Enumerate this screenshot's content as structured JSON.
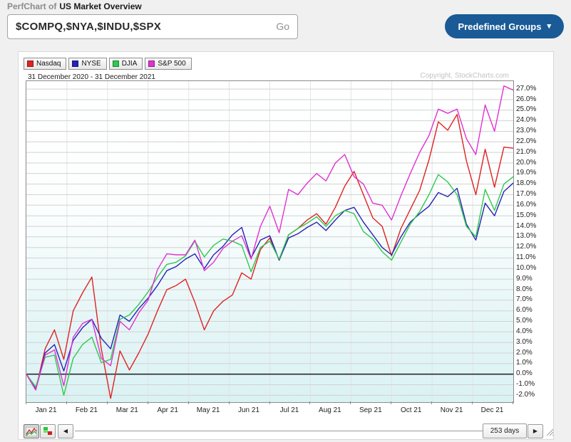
{
  "header": {
    "title_prefix": "PerfChart of",
    "title_main": "US Market Overview"
  },
  "controls": {
    "symbols_input_value": "$COMPQ,$NYA,$INDU,$SPX",
    "go_label": "Go",
    "predefined_groups_label": "Predefined Groups",
    "predefined_groups_color": "#1a5a96"
  },
  "icons": {
    "chevron_down": "▾",
    "scroll_left": "◀",
    "scroll_right": "▶"
  },
  "chart": {
    "date_range_label": "31 December 2020 - 31 December 2021",
    "copyright_label": "Copyright, StockCharts.com",
    "days_label": "253 days"
  },
  "chart_data": {
    "type": "line",
    "title": "PerfChart of US Market Overview",
    "subtitle": "31 December 2020 - 31 December 2021",
    "x_categories": [
      "Jan 21",
      "Feb 21",
      "Mar 21",
      "Apr 21",
      "May 21",
      "Jun 21",
      "Jul 21",
      "Aug 21",
      "Sep 21",
      "Oct 21",
      "Nov 21",
      "Dec 21"
    ],
    "y_unit": "%",
    "ylim": [
      -2.0,
      27.0
    ],
    "y_tick_step": 1.0,
    "grid": true,
    "legend_position": "top-left",
    "zero_line": 0.0,
    "series": [
      {
        "name": "Nasdaq",
        "color": "#e02222",
        "values": [
          0.0,
          -1.5,
          2.4,
          4.2,
          1.4,
          6.0,
          7.7,
          9.2,
          2.4,
          -2.3,
          2.2,
          0.4,
          2.0,
          3.8,
          6.0,
          8.0,
          8.4,
          9.0,
          6.8,
          4.2,
          6.0,
          6.9,
          7.5,
          9.6,
          9.0,
          11.8,
          12.9,
          10.8,
          13.2,
          13.8,
          14.6,
          15.2,
          14.2,
          15.8,
          17.8,
          19.2,
          17.0,
          14.8,
          14.0,
          11.2,
          13.8,
          15.6,
          17.4,
          20.3,
          23.9,
          23.1,
          24.6,
          20.2,
          17.0,
          21.3,
          17.7,
          21.5,
          21.4
        ]
      },
      {
        "name": "NYSE",
        "color": "#2424b8",
        "values": [
          0.0,
          -1.4,
          2.0,
          2.8,
          0.3,
          3.2,
          4.4,
          5.2,
          3.4,
          2.4,
          5.6,
          5.0,
          6.2,
          7.2,
          8.4,
          9.8,
          10.2,
          10.9,
          11.4,
          10.0,
          11.3,
          12.1,
          13.2,
          13.9,
          11.0,
          12.7,
          13.1,
          10.8,
          12.9,
          13.3,
          13.9,
          14.4,
          13.6,
          14.6,
          15.5,
          15.8,
          14.4,
          13.2,
          12.0,
          11.3,
          13.0,
          14.4,
          15.2,
          15.9,
          17.2,
          16.8,
          17.6,
          14.2,
          12.7,
          16.2,
          15.0,
          17.3,
          18.1
        ]
      },
      {
        "name": "DJIA",
        "color": "#2ec94e",
        "values": [
          0.0,
          -1.2,
          1.6,
          1.8,
          -2.0,
          1.5,
          2.8,
          3.5,
          1.1,
          1.4,
          5.2,
          5.6,
          6.6,
          7.8,
          9.2,
          10.4,
          10.6,
          11.2,
          12.6,
          11.1,
          12.2,
          12.8,
          12.6,
          12.2,
          9.7,
          12.0,
          12.6,
          10.9,
          13.2,
          13.8,
          14.3,
          14.9,
          14.0,
          15.0,
          15.5,
          15.2,
          13.5,
          12.8,
          11.6,
          10.8,
          12.5,
          14.2,
          15.4,
          17.0,
          18.9,
          18.2,
          17.0,
          14.0,
          13.0,
          17.5,
          15.5,
          18.0,
          18.7
        ]
      },
      {
        "name": "S&P 500",
        "color": "#e032d2",
        "values": [
          0.0,
          -1.5,
          1.8,
          2.3,
          -1.1,
          3.5,
          4.8,
          5.2,
          1.5,
          0.8,
          5.0,
          4.2,
          5.8,
          7.0,
          9.9,
          11.4,
          11.3,
          11.3,
          12.7,
          9.8,
          10.6,
          11.9,
          12.6,
          13.1,
          10.9,
          14.0,
          15.9,
          13.4,
          17.5,
          17.0,
          18.1,
          19.0,
          18.3,
          20.0,
          20.8,
          18.7,
          18.0,
          16.2,
          16.0,
          14.6,
          16.9,
          19.0,
          21.0,
          22.6,
          25.1,
          24.7,
          25.1,
          22.3,
          20.8,
          25.5,
          23.0,
          27.3,
          26.9
        ]
      }
    ]
  }
}
